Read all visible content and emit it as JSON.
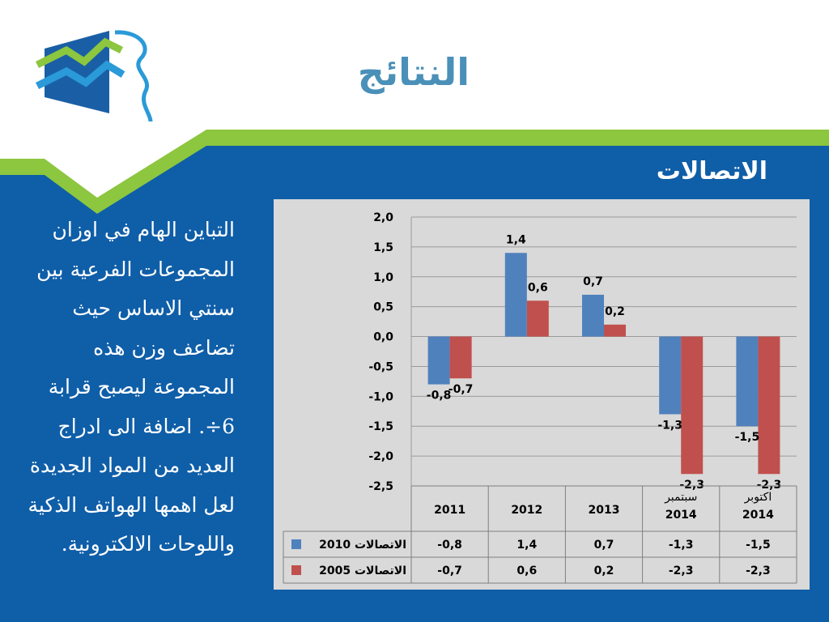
{
  "title": "النتائج",
  "subtitle": "الاتصالات",
  "body_text": "التباين الهام في اوزان المجموعات الفرعية بين سنتي الاساس حيث تضاعف وزن هذه المجموعة ليصبح قرابة 6÷. اضافة الى ادراج العديد من المواد الجديدة لعل اهمها الهواتف الذكية واللوحات الالكترونية.",
  "colors": {
    "slide_blue": "#0f5ea8",
    "accent_green": "#8dc63f",
    "title_blue": "#4a90b8",
    "series1": "#4f81bd",
    "series2": "#c0504d",
    "chart_bg": "#d9d9d9"
  },
  "chart_data": {
    "type": "bar",
    "categories": [
      "2011",
      "2012",
      "2013",
      "سبتمبر 2014",
      "اكتوبر 2014"
    ],
    "category_lines": [
      [
        "2011"
      ],
      [
        "2012"
      ],
      [
        "2013"
      ],
      [
        "سبتمبر",
        "2014"
      ],
      [
        "اكتوبر",
        "2014"
      ]
    ],
    "series": [
      {
        "name": "الاتصالات 2010",
        "values": [
          -0.8,
          1.4,
          0.7,
          -1.3,
          -1.5
        ],
        "labels": [
          "-0,8",
          "1,4",
          "0,7",
          "-1,3",
          "-1,5"
        ],
        "color": "#4f81bd"
      },
      {
        "name": "الاتصالات 2005",
        "values": [
          -0.7,
          0.6,
          0.2,
          -2.3,
          -2.3
        ],
        "labels": [
          "-0,7",
          "0,6",
          "0,2",
          "-2,3",
          "-2,3"
        ],
        "color": "#c0504d"
      }
    ],
    "y_ticks": [
      "2,0",
      "1,5",
      "1,0",
      "0,5",
      "0,0",
      "-0,5",
      "-1,0",
      "-1,5",
      "-2,0",
      "-2,5"
    ],
    "ylim": [
      -2.5,
      2.0
    ],
    "grid": true,
    "legend": "data table"
  }
}
